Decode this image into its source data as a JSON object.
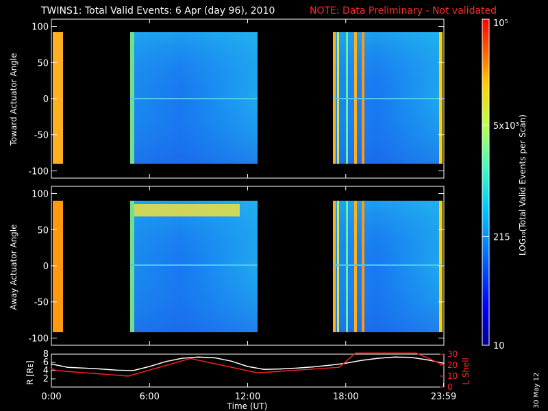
{
  "title": {
    "main": "TWINS1: Total Valid Events:  6 Apr (day  96), 2010",
    "note": "NOTE: Data Preliminary - Not validated"
  },
  "colorbar": {
    "label": "LOG₁₀(Total Valid Events per Scan)",
    "ticks": [
      "10⁵",
      "5x10³",
      "215",
      "10"
    ],
    "scale": "log",
    "range": [
      10,
      100000
    ],
    "colormap": [
      "#000090",
      "#0000ff",
      "#0070ff",
      "#00c8ff",
      "#40ffc0",
      "#c0ff40",
      "#ffd000",
      "#ff6000",
      "#ff0000"
    ]
  },
  "footer": {
    "stamp": "30 May 12"
  },
  "chart_data": [
    {
      "type": "heatmap",
      "panel": "top",
      "ylabel": "Toward Actuator Angle",
      "xlabel": "",
      "ylim": [
        -110,
        110
      ],
      "yticks": [
        "100",
        "50",
        "0",
        "-50",
        "-100"
      ],
      "xlim_hours": [
        0,
        24
      ],
      "data_extent": [
        -90,
        90
      ],
      "data_segments": [
        {
          "start": "00:00",
          "end": "00:25",
          "level": "orange"
        },
        {
          "start": "04:50",
          "end": "12:40",
          "level": "blue-cyan"
        },
        {
          "start": "17:40",
          "end": "23:59",
          "level": "blue-cyan with orange/yellow vertical bands"
        }
      ]
    },
    {
      "type": "heatmap",
      "panel": "middle",
      "ylabel": "Away Actuator Angle",
      "xlabel": "",
      "ylim": [
        -110,
        110
      ],
      "yticks": [
        "100",
        "50",
        "0",
        "-50",
        "-100"
      ],
      "xlim_hours": [
        0,
        24
      ],
      "data_extent": [
        -90,
        90
      ],
      "data_segments": [
        {
          "start": "00:00",
          "end": "00:25",
          "level": "orange"
        },
        {
          "start": "04:50",
          "end": "12:40",
          "level": "blue-cyan, yellow band near 75 deg"
        },
        {
          "start": "17:40",
          "end": "23:59",
          "level": "blue-cyan with orange/yellow vertical bands"
        }
      ]
    },
    {
      "type": "line",
      "panel": "bottom",
      "xlabel": "Time (UT)",
      "ylabel": "R [Rᴇ]",
      "ylabel_right": "L Shell",
      "xticks": [
        "0:00",
        "6:00",
        "12:00",
        "18:00",
        "23:59"
      ],
      "ylim": [
        0,
        8
      ],
      "yticks": [
        "8",
        "6",
        "4",
        "2"
      ],
      "ylim_right": [
        0,
        30
      ],
      "yticks_right": [
        "30",
        "20",
        "10",
        "0"
      ],
      "series": [
        {
          "name": "R",
          "color": "#ffffff",
          "x": [
            0,
            1,
            2,
            3,
            4,
            5,
            6,
            7,
            8,
            9,
            10,
            11,
            12,
            13,
            14,
            15,
            16,
            17,
            18,
            19,
            20,
            21,
            22,
            23,
            24
          ],
          "y": [
            5.6,
            4.8,
            4.6,
            4.4,
            4.1,
            4.0,
            5.0,
            6.2,
            7.0,
            7.3,
            7.1,
            6.3,
            5.0,
            4.3,
            4.4,
            4.6,
            4.9,
            5.3,
            5.8,
            6.5,
            7.0,
            7.3,
            7.2,
            6.6,
            5.8
          ]
        },
        {
          "name": "L Shell",
          "color": "#ff2020",
          "x": [
            0,
            0.3,
            4.7,
            8.5,
            12.6,
            17.6,
            18.6,
            22.3,
            24
          ],
          "y": [
            17,
            15,
            10,
            26,
            13,
            18,
            31,
            31,
            20
          ]
        }
      ]
    }
  ]
}
